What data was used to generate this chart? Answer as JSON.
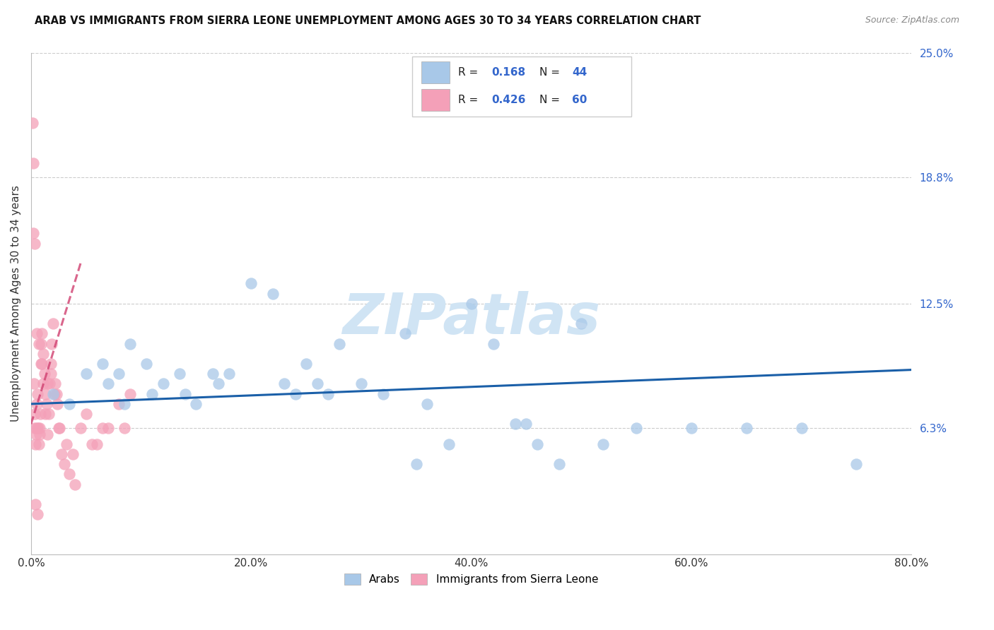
{
  "title": "ARAB VS IMMIGRANTS FROM SIERRA LEONE UNEMPLOYMENT AMONG AGES 30 TO 34 YEARS CORRELATION CHART",
  "source": "Source: ZipAtlas.com",
  "ylabel": "Unemployment Among Ages 30 to 34 years",
  "xlabel_vals": [
    0.0,
    20.0,
    40.0,
    60.0,
    80.0
  ],
  "ylabel_vals": [
    6.3,
    12.5,
    18.8,
    25.0
  ],
  "xlim": [
    0.0,
    80.0
  ],
  "ylim": [
    0.0,
    25.0
  ],
  "arab_color": "#a8c8e8",
  "sierra_color": "#f4a0b8",
  "arab_R": 0.168,
  "arab_N": 44,
  "sierra_R": 0.426,
  "sierra_N": 60,
  "arab_trend_color": "#1a5fa8",
  "sierra_trend_color": "#d04070",
  "watermark": "ZIPatlas",
  "watermark_color": "#d0e4f4",
  "legend_label_arab": "Arabs",
  "legend_label_sierra": "Immigrants from Sierra Leone",
  "arab_x": [
    2.0,
    3.5,
    5.0,
    6.5,
    7.0,
    8.0,
    9.0,
    10.5,
    11.0,
    12.0,
    13.5,
    14.0,
    15.0,
    16.5,
    18.0,
    20.0,
    22.0,
    23.0,
    24.0,
    25.0,
    26.0,
    27.0,
    28.0,
    30.0,
    32.0,
    34.0,
    36.0,
    38.0,
    40.0,
    42.0,
    44.0,
    46.0,
    48.0,
    50.0,
    55.0,
    60.0,
    65.0,
    70.0,
    75.0,
    52.0,
    45.0,
    35.0,
    17.0,
    8.5
  ],
  "arab_y": [
    8.0,
    7.5,
    9.0,
    9.5,
    8.5,
    9.0,
    10.5,
    9.5,
    8.0,
    8.5,
    9.0,
    8.0,
    7.5,
    9.0,
    9.0,
    13.5,
    13.0,
    8.5,
    8.0,
    9.5,
    8.5,
    8.0,
    10.5,
    8.5,
    8.0,
    11.0,
    7.5,
    5.5,
    12.5,
    10.5,
    6.5,
    5.5,
    4.5,
    11.5,
    6.3,
    6.3,
    6.3,
    6.3,
    4.5,
    5.5,
    6.5,
    4.5,
    8.5,
    7.5
  ],
  "sierra_x": [
    0.15,
    0.2,
    0.25,
    0.3,
    0.35,
    0.4,
    0.45,
    0.5,
    0.55,
    0.6,
    0.65,
    0.7,
    0.75,
    0.8,
    0.85,
    0.9,
    0.95,
    1.0,
    1.1,
    1.2,
    1.3,
    1.4,
    1.5,
    1.6,
    1.7,
    1.8,
    1.9,
    2.0,
    2.2,
    2.4,
    2.6,
    2.8,
    3.0,
    3.5,
    4.0,
    5.0,
    6.0,
    7.0,
    8.0,
    9.0,
    0.3,
    0.5,
    0.7,
    0.9,
    1.1,
    1.3,
    1.5,
    1.8,
    2.1,
    2.5,
    3.2,
    4.5,
    5.5,
    6.5,
    8.5,
    0.2,
    0.4,
    0.6,
    2.3,
    3.8
  ],
  "sierra_y": [
    21.5,
    19.5,
    8.5,
    7.0,
    6.3,
    5.5,
    6.0,
    6.3,
    7.5,
    8.0,
    6.3,
    5.5,
    6.0,
    6.3,
    7.0,
    10.5,
    9.5,
    11.0,
    10.0,
    9.0,
    8.0,
    7.5,
    8.5,
    7.0,
    8.5,
    9.5,
    10.5,
    11.5,
    8.5,
    7.5,
    6.3,
    5.0,
    4.5,
    4.0,
    3.5,
    7.0,
    5.5,
    6.3,
    7.5,
    8.0,
    15.5,
    11.0,
    10.5,
    9.5,
    8.5,
    7.0,
    6.0,
    9.0,
    8.0,
    6.3,
    5.5,
    6.3,
    5.5,
    6.3,
    6.3,
    16.0,
    2.5,
    2.0,
    8.0,
    5.0
  ],
  "arab_trend_x_start": 0.0,
  "arab_trend_x_end": 80.0,
  "arab_trend_y_start": 7.5,
  "arab_trend_y_end": 9.2,
  "sierra_trend_x_start": 0.0,
  "sierra_trend_x_end": 4.5,
  "sierra_trend_y_start": 6.5,
  "sierra_trend_y_end": 14.5
}
